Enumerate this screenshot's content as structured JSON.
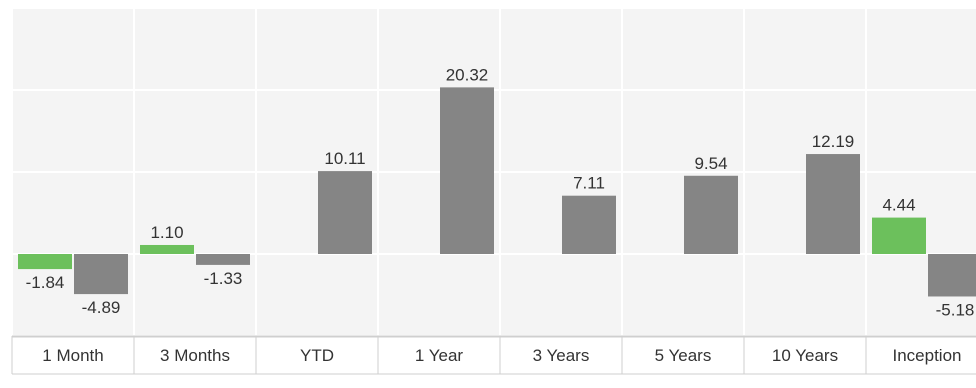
{
  "chart_data": {
    "type": "bar",
    "categories": [
      "1 Month",
      "3 Months",
      "YTD",
      "1 Year",
      "3 Years",
      "5 Years",
      "10 Years",
      "Inception"
    ],
    "series": [
      {
        "color": "#6cc05c",
        "values": [
          -1.84,
          1.1,
          null,
          null,
          null,
          null,
          null,
          4.44
        ]
      },
      {
        "color": "#858585",
        "values": [
          -4.89,
          -1.33,
          10.11,
          20.32,
          7.11,
          9.54,
          12.19,
          -5.18
        ]
      }
    ],
    "value_labels": [
      [
        "-1.84",
        "1.10",
        "",
        "",
        "",
        "",
        "",
        "4.44"
      ],
      [
        "-4.89",
        "-1.33",
        "10.11",
        "20.32",
        "7.11",
        "9.54",
        "12.19",
        "-5.18"
      ]
    ],
    "ylim": [
      -10,
      30
    ],
    "grid": true,
    "legend": "none"
  }
}
